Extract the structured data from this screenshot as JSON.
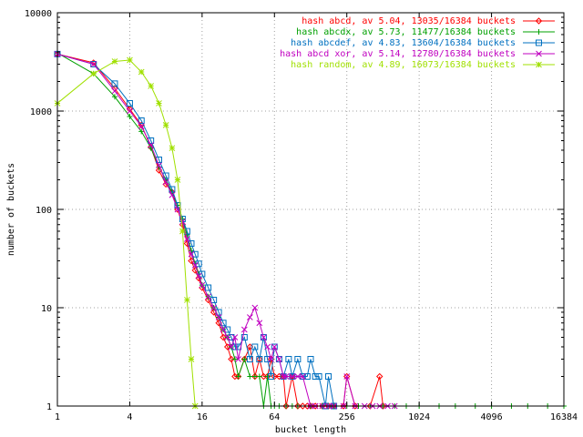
{
  "chart_data": {
    "type": "line",
    "title": "",
    "xlabel": "bucket length",
    "ylabel": "number of buckets",
    "xscale": "log2",
    "yscale": "log10",
    "xlim": [
      1,
      16384
    ],
    "ylim": [
      1,
      10000
    ],
    "xticks": [
      1,
      4,
      16,
      64,
      256,
      1024,
      4096,
      16384
    ],
    "xtick_labels": [
      "1",
      "4",
      "16",
      "64",
      "256",
      "1024",
      "4096",
      "16384"
    ],
    "yticks": [
      1,
      10,
      100,
      1000,
      10000
    ],
    "ytick_labels": [
      "1",
      "10",
      "100",
      "1000",
      "10000"
    ],
    "grid": true,
    "legend_position": "top-right",
    "series": [
      {
        "name": "hash abcd, av 5.04, 13035/16384 buckets",
        "color": "#ff0000",
        "marker": "diamond",
        "x": [
          1,
          2,
          3,
          4,
          5,
          6,
          7,
          8,
          9,
          10,
          11,
          12,
          13,
          14,
          15,
          16,
          18,
          20,
          22,
          24,
          26,
          28,
          30,
          32,
          36,
          40,
          44,
          48,
          52,
          56,
          60,
          64,
          70,
          76,
          80,
          90,
          100,
          110,
          120,
          128,
          140,
          160,
          180,
          200,
          240,
          256,
          300,
          400,
          480,
          512
        ],
        "y": [
          3800,
          3100,
          1700,
          1050,
          720,
          430,
          250,
          180,
          150,
          100,
          70,
          45,
          30,
          24,
          20,
          16,
          12,
          9,
          7,
          5,
          4,
          3,
          2,
          2,
          3,
          4,
          2,
          3,
          2,
          2,
          3,
          2,
          2,
          2,
          1,
          2,
          1,
          1,
          1,
          1,
          1,
          1,
          1,
          1,
          1,
          2,
          1,
          1,
          2,
          1
        ]
      },
      {
        "name": "hash abcdx, av 5.73, 11477/16384 buckets",
        "color": "#00a000",
        "marker": "plus",
        "x": [
          1,
          2,
          3,
          4,
          5,
          6,
          7,
          8,
          9,
          10,
          11,
          12,
          13,
          14,
          15,
          16,
          18,
          20,
          22,
          24,
          26,
          28,
          30,
          32,
          36,
          40,
          44,
          48,
          52,
          56,
          60,
          64,
          70,
          80,
          90,
          100,
          128,
          160,
          200,
          256,
          320,
          400,
          512,
          640,
          800,
          1024,
          1500,
          2048,
          3000,
          4096,
          6000,
          8192,
          12000,
          16384
        ],
        "y": [
          3900,
          2400,
          1400,
          880,
          620,
          420,
          270,
          200,
          150,
          110,
          80,
          55,
          38,
          28,
          22,
          17,
          13,
          10,
          8,
          6,
          5,
          4,
          3,
          2,
          3,
          2,
          2,
          2,
          1,
          2,
          1,
          1,
          1,
          1,
          1,
          1,
          1,
          1,
          1,
          1,
          1,
          1,
          1,
          1,
          1,
          1,
          1,
          1,
          1,
          1,
          1,
          1,
          1,
          1
        ]
      },
      {
        "name": "hash abcdef, av 4.83, 13604/16384 buckets",
        "color": "#0070c0",
        "marker": "square",
        "x": [
          1,
          2,
          3,
          4,
          5,
          6,
          7,
          8,
          9,
          10,
          11,
          12,
          13,
          14,
          15,
          16,
          18,
          20,
          22,
          24,
          26,
          28,
          30,
          32,
          36,
          40,
          44,
          48,
          52,
          56,
          60,
          64,
          70,
          76,
          84,
          90,
          100,
          110,
          120,
          128,
          140,
          150,
          170,
          180,
          200
        ],
        "y": [
          3800,
          3000,
          1900,
          1200,
          800,
          500,
          320,
          220,
          160,
          110,
          80,
          60,
          45,
          35,
          28,
          22,
          16,
          12,
          9,
          7,
          6,
          5,
          4,
          4,
          5,
          3,
          4,
          3,
          5,
          3,
          2,
          4,
          3,
          2,
          3,
          2,
          3,
          2,
          2,
          3,
          2,
          2,
          1,
          2,
          1
        ]
      },
      {
        "name": "hash abcd xor, av 5.14, 12780/16384 buckets",
        "color": "#c000c0",
        "marker": "cross",
        "x": [
          1,
          2,
          3,
          4,
          5,
          6,
          7,
          8,
          9,
          10,
          11,
          12,
          13,
          14,
          15,
          16,
          18,
          20,
          22,
          24,
          26,
          28,
          30,
          32,
          36,
          40,
          44,
          48,
          52,
          56,
          60,
          64,
          70,
          76,
          80,
          90,
          100,
          110,
          128,
          140,
          160,
          180,
          200,
          240,
          256,
          300,
          360,
          420,
          480,
          560,
          640
        ],
        "y": [
          3800,
          3000,
          1600,
          1000,
          700,
          450,
          280,
          190,
          140,
          100,
          75,
          50,
          35,
          27,
          21,
          17,
          13,
          10,
          8,
          6,
          5,
          4,
          5,
          3,
          6,
          8,
          10,
          7,
          5,
          4,
          3,
          4,
          3,
          2,
          2,
          2,
          2,
          2,
          1,
          1,
          1,
          1,
          1,
          1,
          2,
          1,
          1,
          1,
          1,
          1,
          1
        ]
      },
      {
        "name": "hash random, av 4.89, 16073/16384 buckets",
        "color": "#a0e000",
        "marker": "star",
        "x": [
          1,
          2,
          3,
          4,
          5,
          6,
          7,
          8,
          9,
          10,
          11,
          12,
          13,
          14
        ],
        "y": [
          1200,
          2400,
          3200,
          3300,
          2500,
          1800,
          1200,
          720,
          420,
          200,
          60,
          12,
          3,
          1
        ]
      }
    ]
  }
}
